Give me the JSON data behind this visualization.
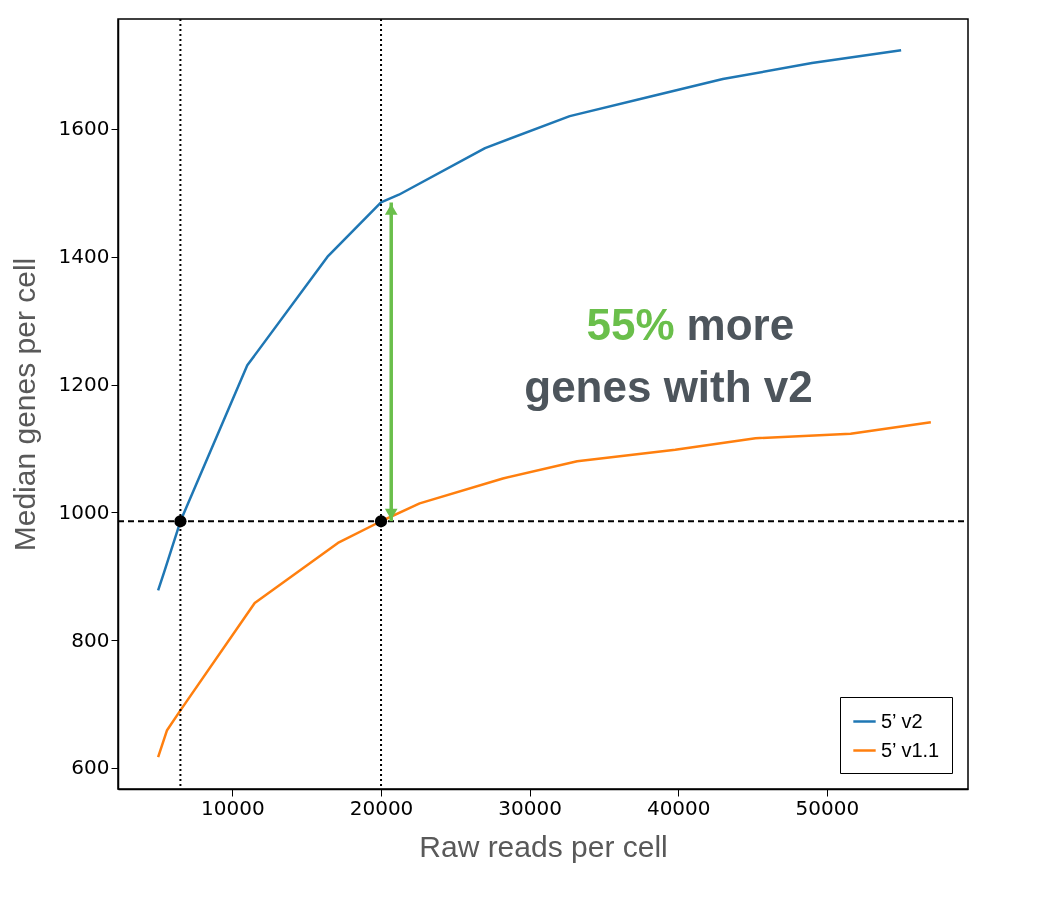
{
  "chart_data": {
    "type": "line",
    "xlabel": "Raw reads per cell",
    "ylabel": "Median genes per cell",
    "xlim": [
      2300,
      59500
    ],
    "ylim": [
      567,
      1772
    ],
    "xticks": [
      10000,
      20000,
      30000,
      40000,
      50000
    ],
    "yticks": [
      600,
      800,
      1000,
      1200,
      1400,
      1600
    ],
    "grid": false,
    "legend": "bottom right",
    "line_style": "solid",
    "series": [
      {
        "name": "5’ v2",
        "color": "#1f77b4",
        "marker": "none",
        "x": [
          5000,
          5400,
          6500,
          11000,
          16400,
          20000,
          21200,
          27000,
          32700,
          38000,
          43000,
          49000,
          55000
        ],
        "values": [
          878,
          906,
          986,
          1230,
          1400,
          1485,
          1497,
          1570,
          1620,
          1650,
          1678,
          1703,
          1723
        ]
      },
      {
        "name": "5’ v1.1",
        "color": "#ff7f0e",
        "marker": "none",
        "x": [
          5000,
          5600,
          6500,
          11500,
          17100,
          20000,
          22600,
          28200,
          33200,
          39800,
          45200,
          51600,
          57000
        ],
        "values": [
          617,
          659,
          690,
          858,
          952,
          986,
          1014,
          1053,
          1080,
          1098,
          1116,
          1123,
          1141
        ]
      },
      {
        "type": "scatter",
        "color": "#000000",
        "marker": "circle",
        "x": [
          6500,
          20000
        ],
        "values": [
          986,
          986
        ]
      }
    ],
    "ref_lines": [
      {
        "axis": "x",
        "value": 6500,
        "color": "#000000",
        "line_style": "dotted"
      },
      {
        "axis": "x",
        "value": 20000,
        "color": "#000000",
        "line_style": "dotted"
      },
      {
        "axis": "y",
        "value": 986,
        "color": "#000000",
        "line_style": "dashed"
      }
    ],
    "annotations": [
      "55% more genes with v2"
    ]
  }
}
